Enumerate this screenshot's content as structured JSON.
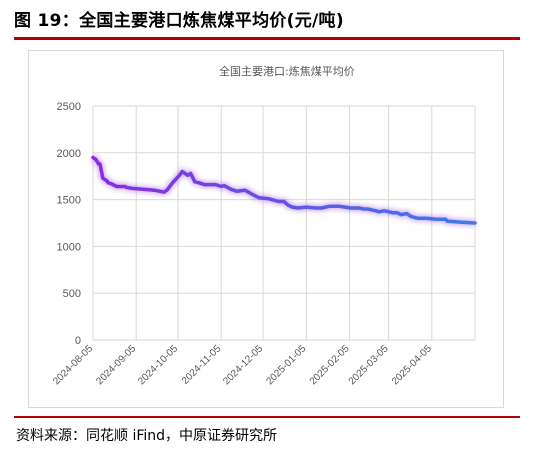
{
  "header": {
    "figure_title": "图 19：全国主要港口炼焦煤平均价(元/吨)"
  },
  "footer": {
    "source": "资料来源：同花顺 iFind，中原证券研究所"
  },
  "colors": {
    "accent_rule": "#b40000",
    "series_start": "#8a2be2",
    "series_end": "#3b7dea",
    "grid": "#d9d9d9"
  },
  "chart_data": {
    "type": "line",
    "title": "",
    "xlabel": "",
    "ylabel": "",
    "ylim": [
      0,
      2500
    ],
    "yticks": [
      "0",
      "500",
      "1000",
      "1500",
      "2000",
      "2500"
    ],
    "xticks": [
      "2024-08-05",
      "2024-09-05",
      "2024-10-05",
      "2024-11-05",
      "2024-12-05",
      "2025-01-05",
      "2025-02-05",
      "2025-03-05",
      "2025-04-05"
    ],
    "grid": true,
    "legend": "top-center",
    "series": [
      {
        "name": "全国主要港口:炼焦煤平均价",
        "x": [
          "2024-08-05",
          "2024-08-07",
          "2024-08-09",
          "2024-08-10",
          "2024-08-12",
          "2024-08-15",
          "2024-08-16",
          "2024-08-18",
          "2024-08-22",
          "2024-08-28",
          "2024-08-29",
          "2024-09-02",
          "2024-09-10",
          "2024-09-18",
          "2024-09-25",
          "2024-09-27",
          "2024-10-01",
          "2024-10-06",
          "2024-10-08",
          "2024-10-12",
          "2024-10-14",
          "2024-10-17",
          "2024-10-20",
          "2024-10-24",
          "2024-10-28",
          "2024-11-01",
          "2024-11-05",
          "2024-11-07",
          "2024-11-12",
          "2024-11-16",
          "2024-11-22",
          "2024-11-28",
          "2024-12-02",
          "2024-12-09",
          "2024-12-16",
          "2024-12-20",
          "2024-12-23",
          "2024-12-26",
          "2024-12-30",
          "2025-01-05",
          "2025-01-12",
          "2025-01-16",
          "2025-01-19",
          "2025-01-22",
          "2025-01-28",
          "2025-02-06",
          "2025-02-12",
          "2025-02-15",
          "2025-02-18",
          "2025-02-24",
          "2025-02-26",
          "2025-03-02",
          "2025-03-05",
          "2025-03-08",
          "2025-03-11",
          "2025-03-14",
          "2025-03-18",
          "2025-03-21",
          "2025-03-26",
          "2025-04-01",
          "2025-04-08",
          "2025-04-15",
          "2025-04-16",
          "2025-04-25",
          "2025-05-06"
        ],
        "values": [
          1950,
          1930,
          1880,
          1880,
          1730,
          1700,
          1680,
          1670,
          1640,
          1640,
          1630,
          1620,
          1610,
          1600,
          1580,
          1600,
          1680,
          1760,
          1800,
          1760,
          1780,
          1690,
          1680,
          1660,
          1660,
          1660,
          1640,
          1650,
          1610,
          1590,
          1600,
          1550,
          1520,
          1510,
          1480,
          1480,
          1440,
          1420,
          1410,
          1420,
          1410,
          1410,
          1420,
          1430,
          1430,
          1410,
          1410,
          1400,
          1400,
          1380,
          1370,
          1380,
          1370,
          1360,
          1360,
          1340,
          1350,
          1320,
          1300,
          1300,
          1290,
          1290,
          1270,
          1260,
          1250
        ]
      }
    ]
  }
}
